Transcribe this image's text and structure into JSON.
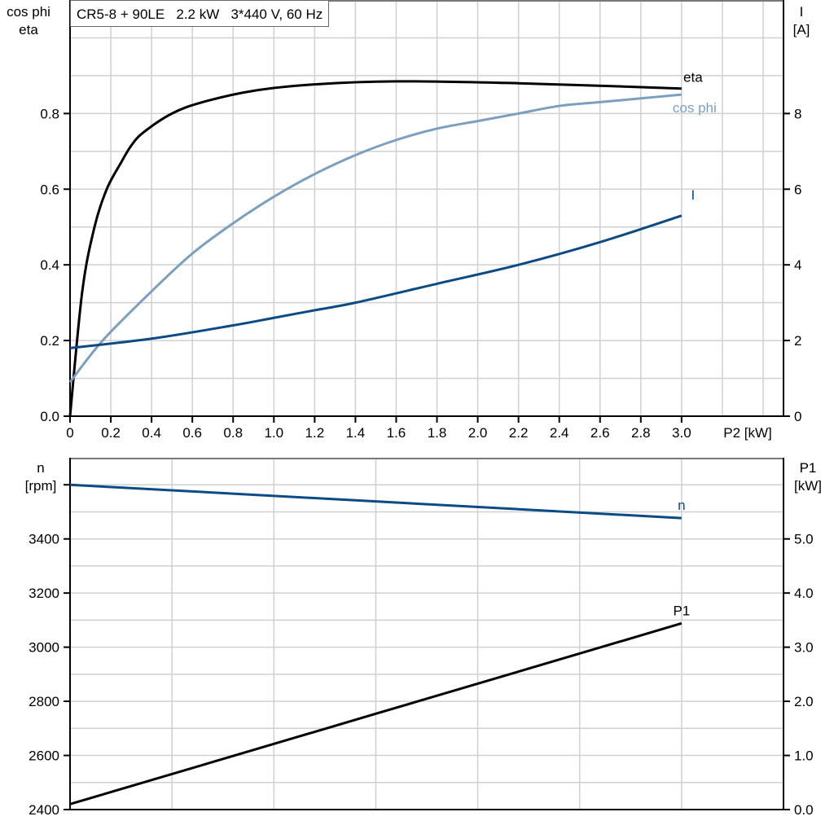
{
  "chart_data": [
    {
      "type": "line",
      "title": "CR5-8 + 90LE   2.2 kW   3*440 V, 60 Hz",
      "xlabel": "P2 [kW]",
      "ylabel_left": [
        "cos phi",
        "eta"
      ],
      "ylabel_right": [
        "I",
        "[A]"
      ],
      "xlim": [
        0,
        3.5
      ],
      "ylim_left": [
        0,
        1.1
      ],
      "ylim_right": [
        0,
        11
      ],
      "x_ticks": [
        "0",
        "0.2",
        "0.4",
        "0.6",
        "0.8",
        "1.0",
        "1.2",
        "1.4",
        "1.6",
        "1.8",
        "2.0",
        "2.2",
        "2.4",
        "2.6",
        "2.8",
        "3.0"
      ],
      "y_left_ticks": [
        "0.0",
        "0.2",
        "0.4",
        "0.6",
        "0.8"
      ],
      "y_right_ticks": [
        "0",
        "2",
        "4",
        "6",
        "8"
      ],
      "grid": true,
      "series": [
        {
          "name": "eta",
          "axis": "left",
          "color": "#000000",
          "x": [
            0,
            0.06,
            0.12,
            0.18,
            0.25,
            0.3,
            0.36,
            0.5,
            0.65,
            0.9,
            1.2,
            1.6,
            2.2,
            3.0
          ],
          "y": [
            0,
            0.33,
            0.5,
            0.6,
            0.67,
            0.715,
            0.75,
            0.8,
            0.83,
            0.86,
            0.877,
            0.885,
            0.88,
            0.866
          ]
        },
        {
          "name": "cos phi",
          "axis": "left",
          "color": "#7b9fc0",
          "x": [
            0,
            0.16,
            0.4,
            0.6,
            0.8,
            1.0,
            1.2,
            1.4,
            1.6,
            1.8,
            2.0,
            2.2,
            2.4,
            2.6,
            2.8,
            3.0
          ],
          "y": [
            0.09,
            0.2,
            0.33,
            0.43,
            0.51,
            0.58,
            0.64,
            0.69,
            0.73,
            0.76,
            0.78,
            0.8,
            0.82,
            0.83,
            0.84,
            0.85
          ]
        },
        {
          "name": "I",
          "axis": "right",
          "color": "#0b4a85",
          "x": [
            0,
            0.4,
            0.8,
            1.0,
            1.2,
            1.4,
            1.8,
            2.2,
            2.6,
            3.0
          ],
          "y": [
            1.8,
            2.05,
            2.4,
            2.6,
            2.8,
            3.0,
            3.5,
            4.0,
            4.6,
            5.3
          ]
        }
      ]
    },
    {
      "type": "line",
      "ylabel_left": [
        "n",
        "[rpm]"
      ],
      "ylabel_right": [
        "P1",
        "[kW]"
      ],
      "xlim": [
        0,
        3.5
      ],
      "ylim_left": [
        2400,
        3700
      ],
      "ylim_right": [
        0,
        6.5
      ],
      "y_left_ticks": [
        "2400",
        "2600",
        "2800",
        "3000",
        "3200",
        "3400"
      ],
      "y_right_ticks": [
        "0.0",
        "1.0",
        "2.0",
        "3.0",
        "4.0",
        "5.0"
      ],
      "grid": true,
      "series": [
        {
          "name": "n",
          "axis": "left",
          "color": "#0b4a85",
          "x": [
            0,
            3.0
          ],
          "y": [
            3600,
            3477
          ]
        },
        {
          "name": "P1",
          "axis": "right",
          "color": "#000000",
          "x": [
            0,
            3.0
          ],
          "y": [
            0.1,
            3.44
          ]
        }
      ]
    }
  ]
}
